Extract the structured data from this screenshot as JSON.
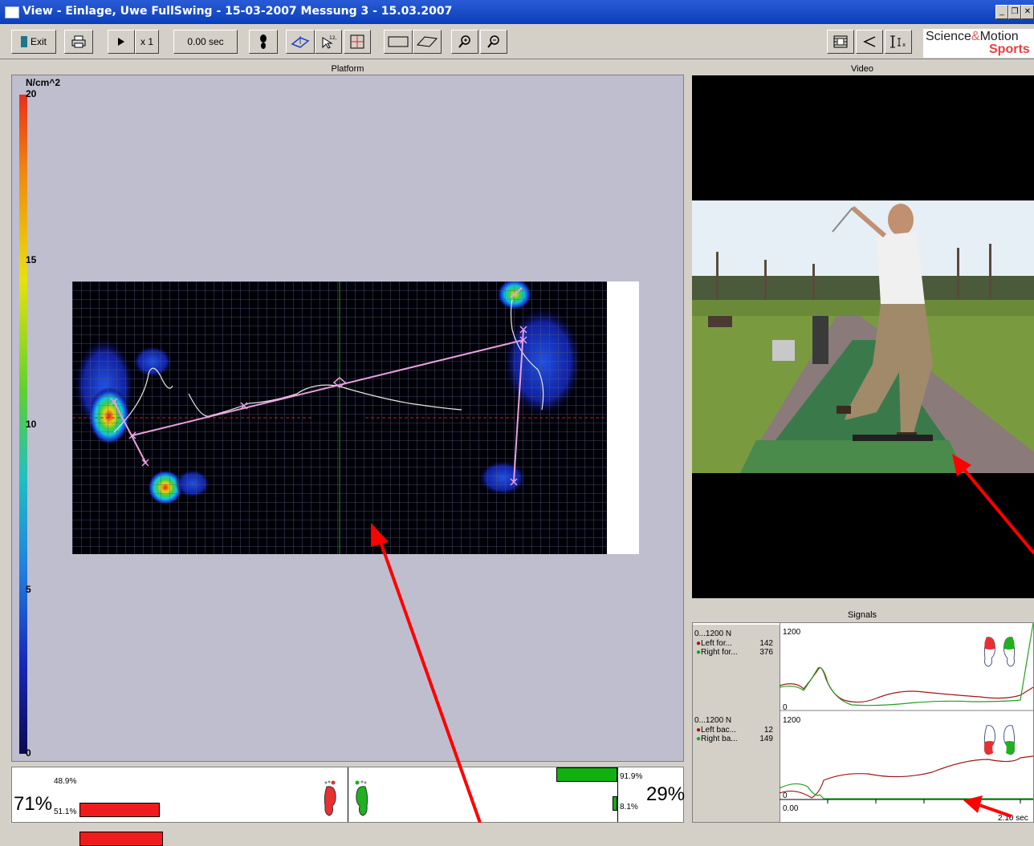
{
  "window": {
    "title": "View - Einlage, Uwe FullSwing - 15-03-2007 Messung 3 - 15.03.2007",
    "min": "_",
    "restore": "❐",
    "close": "✕"
  },
  "toolbar": {
    "exit_label": "Exit",
    "speed_label": "x 1",
    "time_label": "0.00 sec"
  },
  "logo": {
    "line1_a": "Science",
    "line1_amp": "&",
    "line1_b": "Motion",
    "line2": "Sports"
  },
  "platform": {
    "header": "Platform",
    "unit": "N/cm^2",
    "scale_ticks": [
      "20",
      "15",
      "10",
      "5",
      "0"
    ]
  },
  "video": {
    "header": "Video"
  },
  "signals": {
    "header": "Signals",
    "top": {
      "range": "0...1200 N",
      "series": [
        {
          "name": "Left for...",
          "value": "142",
          "color": "#a01818"
        },
        {
          "name": "Right for...",
          "value": "376",
          "color": "#20a020"
        }
      ],
      "ymax": "1200",
      "ymin": "0"
    },
    "bottom": {
      "range": "0...1200 N",
      "series": [
        {
          "name": "Left bac...",
          "value": "12",
          "color": "#a01818"
        },
        {
          "name": "Right ba...",
          "value": "149",
          "color": "#20a020"
        }
      ],
      "ymax": "1200",
      "ymin": "0"
    },
    "x_start": "0.00",
    "x_end": "2.10 sec"
  },
  "balance": {
    "left_total": "71%",
    "left_top": "48.9%",
    "left_bottom": "51.1%",
    "right_total": "29%",
    "right_top": "91.9%",
    "right_bottom": "8.1%"
  },
  "colors": {
    "left_foot": "#e83030",
    "right_foot": "#20b020",
    "arrow": "#ff0000"
  }
}
